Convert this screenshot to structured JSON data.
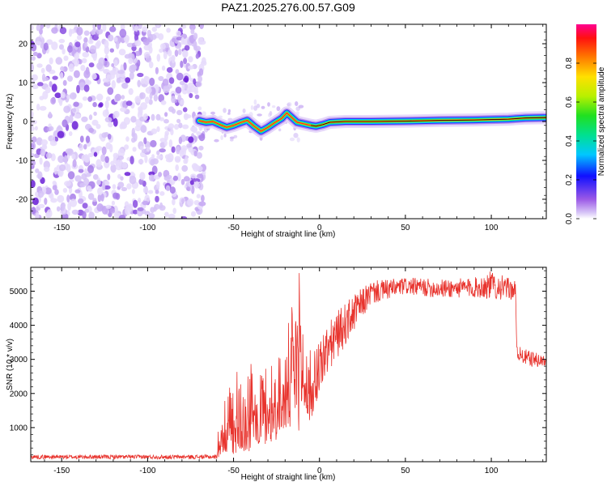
{
  "title": "PAZ1.2025.276.00.57.G09",
  "colors": {
    "snr_line": "#e8342e",
    "scatter": "#8a2be2",
    "frame": "#000000",
    "trace_core": "#ff2020"
  },
  "chart_data": [
    {
      "name": "spectrogram",
      "type": "heatmap",
      "xlabel": "Height of straight line (km)",
      "ylabel": "Frequency (Hz)",
      "xlim": [
        -168,
        132
      ],
      "ylim": [
        -25,
        25
      ],
      "xticks": [
        -150,
        -100,
        -50,
        0,
        50,
        100
      ],
      "xtick_labels": [
        "-150",
        "-100",
        "-50",
        "0",
        "50",
        "100"
      ],
      "yticks": [
        -20,
        -10,
        0,
        10,
        20
      ],
      "ytick_labels": [
        "-20",
        "-10",
        "0",
        "10",
        "20"
      ],
      "noise_region_km": [
        -168,
        -67
      ],
      "trace_start_km": -70,
      "colorbar": {
        "label": "Normalized spectral amplitude",
        "ticks": [
          0.0,
          0.2,
          0.4,
          0.6,
          0.8
        ],
        "tick_labels": [
          "0.0",
          "0.2",
          "0.4",
          "0.6",
          "0.8"
        ],
        "range": [
          0,
          1
        ]
      },
      "trace": [
        {
          "x": -70,
          "y": 0.2
        },
        {
          "x": -66,
          "y": -0.2
        },
        {
          "x": -62,
          "y": 0.0
        },
        {
          "x": -58,
          "y": -0.8
        },
        {
          "x": -54,
          "y": -1.5
        },
        {
          "x": -50,
          "y": -1.0
        },
        {
          "x": -46,
          "y": -0.3
        },
        {
          "x": -42,
          "y": 0.3
        },
        {
          "x": -38,
          "y": -1.2
        },
        {
          "x": -34,
          "y": -2.5
        },
        {
          "x": -30,
          "y": -1.5
        },
        {
          "x": -26,
          "y": -0.3
        },
        {
          "x": -22,
          "y": 0.8
        },
        {
          "x": -19,
          "y": 2.2
        },
        {
          "x": -16,
          "y": 1.0
        },
        {
          "x": -13,
          "y": -0.2
        },
        {
          "x": -10,
          "y": -0.5
        },
        {
          "x": -5,
          "y": -1.0
        },
        {
          "x": -2,
          "y": -1.2
        },
        {
          "x": 2,
          "y": -0.8
        },
        {
          "x": 6,
          "y": -0.2
        },
        {
          "x": 15,
          "y": 0.0
        },
        {
          "x": 30,
          "y": 0.0
        },
        {
          "x": 50,
          "y": 0.1
        },
        {
          "x": 70,
          "y": 0.3
        },
        {
          "x": 90,
          "y": 0.4
        },
        {
          "x": 110,
          "y": 0.6
        },
        {
          "x": 120,
          "y": 0.9
        },
        {
          "x": 132,
          "y": 1.0
        }
      ]
    },
    {
      "name": "snr",
      "type": "line",
      "xlabel": "Height of straight line (km)",
      "ylabel": "SNR (10 * v/v)",
      "xlim": [
        -168,
        132
      ],
      "ylim": [
        0,
        5700
      ],
      "xticks": [
        -150,
        -100,
        -50,
        0,
        50,
        100
      ],
      "xtick_labels": [
        "-150",
        "-100",
        "-50",
        "0",
        "50",
        "100"
      ],
      "yticks": [
        1000,
        2000,
        3000,
        4000,
        5000
      ],
      "ytick_labels": [
        "1000",
        "2000",
        "3000",
        "4000",
        "5000"
      ],
      "series_color": "#e8342e",
      "envelope": [
        {
          "x": -168,
          "lo": 80,
          "hi": 200
        },
        {
          "x": -60,
          "lo": 80,
          "hi": 200
        },
        {
          "x": -58,
          "lo": 150,
          "hi": 1500
        },
        {
          "x": -50,
          "lo": 200,
          "hi": 2600
        },
        {
          "x": -40,
          "lo": 300,
          "hi": 3000
        },
        {
          "x": -30,
          "lo": 500,
          "hi": 2900
        },
        {
          "x": -20,
          "lo": 800,
          "hi": 3600
        },
        {
          "x": -12,
          "lo": 900,
          "hi": 5700
        },
        {
          "x": -5,
          "lo": 1200,
          "hi": 3200
        },
        {
          "x": 0,
          "lo": 2000,
          "hi": 3700
        },
        {
          "x": 10,
          "lo": 3000,
          "hi": 4400
        },
        {
          "x": 20,
          "lo": 3800,
          "hi": 4900
        },
        {
          "x": 30,
          "lo": 4600,
          "hi": 5300
        },
        {
          "x": 50,
          "lo": 4900,
          "hi": 5400
        },
        {
          "x": 70,
          "lo": 4800,
          "hi": 5350
        },
        {
          "x": 90,
          "lo": 4800,
          "hi": 5400
        },
        {
          "x": 100,
          "lo": 4750,
          "hi": 5600
        },
        {
          "x": 114,
          "lo": 4750,
          "hi": 5300
        },
        {
          "x": 115,
          "lo": 3000,
          "hi": 3400
        },
        {
          "x": 120,
          "lo": 2800,
          "hi": 3300
        },
        {
          "x": 132,
          "lo": 2750,
          "hi": 3100
        }
      ]
    }
  ]
}
